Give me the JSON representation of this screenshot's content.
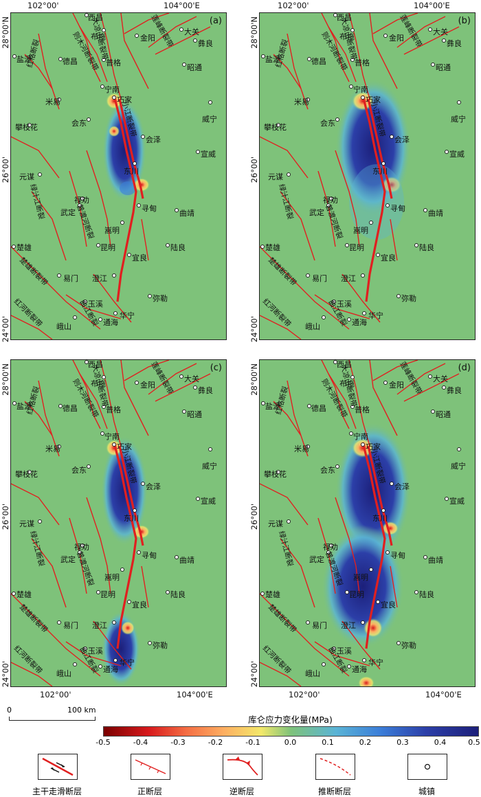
{
  "panels": [
    {
      "id": "a",
      "label": "(a)",
      "top_tick_left": "102°00'",
      "top_tick_right": "104°00'E",
      "lat_top": "28°00'N",
      "lat_mid": "26°00'",
      "lat_bot": "24°00'"
    },
    {
      "id": "b",
      "label": "(b)",
      "top_tick_left": "102°00'",
      "top_tick_right": "104°00'E",
      "lat_top": "28°00'N",
      "lat_mid": "26°00'",
      "lat_bot": "24°00'"
    },
    {
      "id": "c",
      "label": "(c)",
      "lat_top": "28°00'N",
      "lat_mid": "26°00'",
      "lat_bot": "24°00'",
      "bottom_tick_left": "102°00'",
      "bottom_tick_right": "104°00'E"
    },
    {
      "id": "d",
      "label": "(d)",
      "lat_top": "28°00'N",
      "lat_mid": "26°00'",
      "lat_bot": "24°00'",
      "bottom_tick_left": "102°00'",
      "bottom_tick_right": "104°00'E"
    }
  ],
  "cities": [
    "西昌",
    "布拖",
    "金阳",
    "大关",
    "彝良",
    "盐源",
    "德昌",
    "普格",
    "昭通",
    "米易",
    "宁南",
    "巧家",
    "威宁",
    "攀枝花",
    "会东",
    "会泽",
    "宣威",
    "东川",
    "元谋",
    "禄劝",
    "武定",
    "寻甸",
    "曲靖",
    "嵩明",
    "楚雄",
    "昆明",
    "陆良",
    "宜良",
    "易门",
    "澄江",
    "弥勒",
    "玉溪",
    "华宁",
    "峨山",
    "通海"
  ],
  "faults": [
    "大凉山断裂带",
    "则木河断裂带",
    "莲峰断裂带",
    "红格断裂",
    "小江断裂带",
    "绿汁江断裂",
    "普渡河断裂",
    "楚雄断裂带",
    "曲江断裂",
    "红河断裂带"
  ],
  "colorbar": {
    "title": "库仑应力变化量(MPa)",
    "ticks": [
      "-0.5",
      "-0.4",
      "-0.3",
      "-0.2",
      "-0.1",
      "0.0",
      "0.1",
      "0.2",
      "0.3",
      "0.4",
      "0.5"
    ],
    "colors": [
      "#7a0000",
      "#d7191c",
      "#f46d43",
      "#fdae61",
      "#f3e86a",
      "#7ec27a",
      "#5ab4d6",
      "#3b7dd8",
      "#2c3fa8",
      "#1c1f7a"
    ]
  },
  "scale_bar": {
    "zero": "0",
    "length": "100 km"
  },
  "legend": [
    {
      "name": "strike-slip",
      "label": "主干走滑断层"
    },
    {
      "name": "normal",
      "label": "正断层"
    },
    {
      "name": "reverse",
      "label": "逆断层"
    },
    {
      "name": "inferred",
      "label": "推断断层"
    },
    {
      "name": "town",
      "label": "城镇"
    }
  ]
}
